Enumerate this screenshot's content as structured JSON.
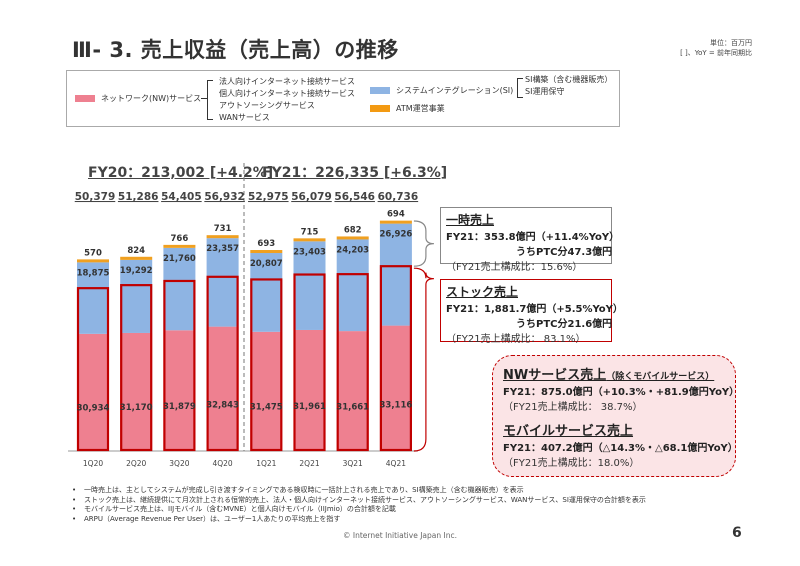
{
  "header": {
    "title": "Ⅲ- 3.  売上収益（売上高）の推移",
    "unit_line1": "単位：百万円",
    "unit_line2": "[  ]、YoY = 前年同期比"
  },
  "legend": {
    "nw_label": "ネットワーク(NW)サービス",
    "nw_items": [
      "法人向けインターネット接続サービス",
      "個人向けインターネット接続サービス",
      "アウトソーシングサービス",
      "WANサービス"
    ],
    "si_label": "システムインテグレーション(SI)",
    "si_items": [
      "SI構築（含む機器販売）",
      "SI運用保守"
    ],
    "atm_label": "ATM運営事業"
  },
  "colors": {
    "nw": "#ee8090",
    "si": "#8eb4e3",
    "atm": "#f0a020",
    "stock_outline": "#c00000",
    "onetime_outline": "#888888",
    "nw_box_bg": "#fbe4e6"
  },
  "chart_data": {
    "type": "bar",
    "stacked": true,
    "categories": [
      "1Q20",
      "2Q20",
      "3Q20",
      "4Q20",
      "1Q21",
      "2Q21",
      "3Q21",
      "4Q21"
    ],
    "series": [
      {
        "name": "ネットワーク(NW)サービス",
        "values": [
          30934,
          31170,
          31879,
          32843,
          31475,
          31961,
          31661,
          33116
        ]
      },
      {
        "name": "システムインテグレーション(SI)",
        "values": [
          18875,
          19292,
          21760,
          23357,
          20807,
          23403,
          24203,
          26926
        ]
      },
      {
        "name": "ATM運営事業",
        "values": [
          570,
          824,
          766,
          731,
          693,
          715,
          682,
          694
        ]
      }
    ],
    "totals": [
      "50,379",
      "51,286",
      "54,405",
      "56,932",
      "52,975",
      "56,079",
      "56,546",
      "60,736"
    ],
    "labels": {
      "nw": [
        "30,934",
        "31,170",
        "31,879",
        "32,843",
        "31,475",
        "31,961",
        "31,661",
        "33,116"
      ],
      "si": [
        "18,875",
        "19,292",
        "21,760",
        "23,357",
        "20,807",
        "23,403",
        "24,203",
        "26,926"
      ],
      "atm": [
        "570",
        "824",
        "766",
        "731",
        "693",
        "715",
        "682",
        "694"
      ]
    },
    "stock_estimate": [
      43000,
      43800,
      44900,
      46000,
      45300,
      46600,
      46700,
      48800
    ],
    "fiscal_years": [
      {
        "label": "FY20：213,002 [+4.2%]"
      },
      {
        "label": "FY21：226,335 [+6.3%]"
      }
    ],
    "ylim": [
      0,
      62000
    ],
    "grid": false,
    "xlabel": "",
    "ylabel": ""
  },
  "callouts": {
    "onetime": {
      "title": "一時売上",
      "line1": "FY21：353.8億円（+11.4%YoY）",
      "line2": "うちPTC分47.3億円",
      "line3": "（FY21売上構成比：15.6%）"
    },
    "stock": {
      "title": "ストック売上",
      "line1": "FY21：1,881.7億円（+5.5%YoY）",
      "line2": "うちPTC分21.6億円",
      "line3": "（FY21売上構成比： 83.1%）"
    },
    "nw": {
      "title": "NWサービス売上",
      "title_note": "（除くモバイルサービス）",
      "line1": "FY21：875.0億円（+10.3%・+81.9億円YoY）",
      "line2": "（FY21売上構成比： 38.7%）"
    },
    "mobile": {
      "title": "モバイルサービス売上",
      "line1": "FY21：407.2億円（△14.3%・△68.1億円YoY）",
      "line2": "（FY21売上構成比：18.0%）"
    }
  },
  "notes": [
    "一時売上は、主としてシステムが完成し引き渡すタイミングである検収時に一括計上される売上であり、SI構築売上（含む機器販売）を表示",
    "ストック売上は、継続提供にて月次計上される恒常的売上、法人・個人向けインターネット接続サービス、アウトソーシングサービス、WANサービス、SI運用保守の合計額を表示",
    "モバイルサービス売上は、IIJモバイル（含むMVNE）と個人向けモバイル（IIJmio）の合計額を記載",
    "ARPU（Average Revenue Per User）は、ユーザー1人あたりの平均売上を指す"
  ],
  "footer": {
    "copyright": "© Internet Initiative Japan Inc.",
    "page": "6"
  }
}
